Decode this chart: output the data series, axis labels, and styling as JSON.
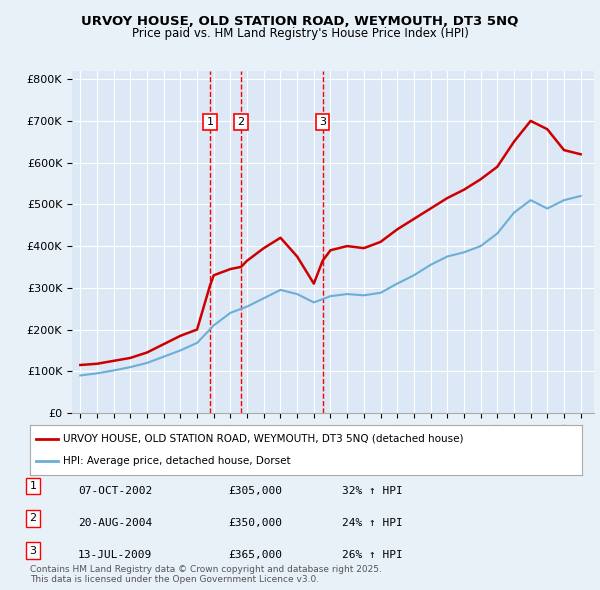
{
  "title1": "URVOY HOUSE, OLD STATION ROAD, WEYMOUTH, DT3 5NQ",
  "title2": "Price paid vs. HM Land Registry's House Price Index (HPI)",
  "background_color": "#e8f0f8",
  "plot_background": "#dce8f5",
  "legend_label_red": "URVOY HOUSE, OLD STATION ROAD, WEYMOUTH, DT3 5NQ (detached house)",
  "legend_label_blue": "HPI: Average price, detached house, Dorset",
  "footnote": "Contains HM Land Registry data © Crown copyright and database right 2025.\nThis data is licensed under the Open Government Licence v3.0.",
  "transactions": [
    {
      "num": 1,
      "date": "07-OCT-2002",
      "price": 305000,
      "hpi_pct": "32% ↑ HPI",
      "year": 2002.77
    },
    {
      "num": 2,
      "date": "20-AUG-2004",
      "price": 350000,
      "hpi_pct": "24% ↑ HPI",
      "year": 2004.63
    },
    {
      "num": 3,
      "date": "13-JUL-2009",
      "price": 365000,
      "hpi_pct": "26% ↑ HPI",
      "year": 2009.53
    }
  ],
  "hpi_years": [
    1995,
    1996,
    1997,
    1998,
    1999,
    2000,
    2001,
    2002,
    2003,
    2004,
    2005,
    2006,
    2007,
    2008,
    2009,
    2010,
    2011,
    2012,
    2013,
    2014,
    2015,
    2016,
    2017,
    2018,
    2019,
    2020,
    2021,
    2022,
    2023,
    2024,
    2025
  ],
  "hpi_values": [
    90000,
    95000,
    102000,
    110000,
    120000,
    135000,
    150000,
    168000,
    210000,
    240000,
    255000,
    275000,
    295000,
    285000,
    265000,
    280000,
    285000,
    282000,
    288000,
    310000,
    330000,
    355000,
    375000,
    385000,
    400000,
    430000,
    480000,
    510000,
    490000,
    510000,
    520000
  ],
  "red_years": [
    1995,
    1996,
    1997,
    1998,
    1999,
    2000,
    2001,
    2002,
    2002.77,
    2003,
    2004,
    2004.63,
    2005,
    2006,
    2007,
    2008,
    2009,
    2009.53,
    2010,
    2011,
    2012,
    2013,
    2014,
    2015,
    2016,
    2017,
    2018,
    2019,
    2020,
    2021,
    2022,
    2023,
    2024,
    2025
  ],
  "red_values": [
    115000,
    118000,
    125000,
    132000,
    145000,
    165000,
    185000,
    200000,
    305000,
    330000,
    345000,
    350000,
    365000,
    395000,
    420000,
    375000,
    310000,
    365000,
    390000,
    400000,
    395000,
    410000,
    440000,
    465000,
    490000,
    515000,
    535000,
    560000,
    590000,
    650000,
    700000,
    680000,
    630000,
    620000
  ],
  "ylim": [
    0,
    820000
  ],
  "xlim": [
    1994.5,
    2025.8
  ],
  "yticks": [
    0,
    100000,
    200000,
    300000,
    400000,
    500000,
    600000,
    700000,
    800000
  ]
}
